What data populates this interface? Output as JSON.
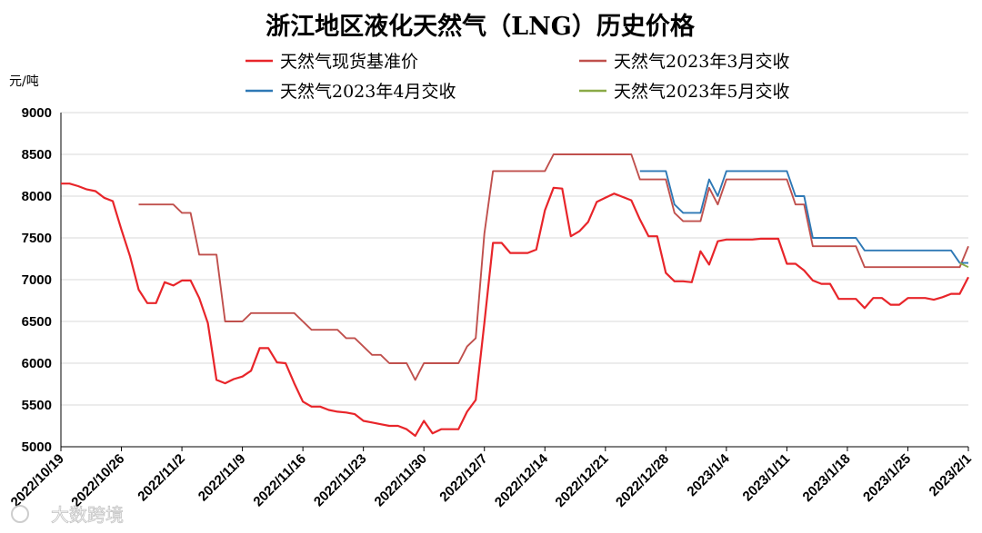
{
  "chart_data": {
    "type": "line",
    "title": "浙江地区液化天然气（LNG）历史价格",
    "ylabel": "元/吨",
    "ylim": [
      5000,
      9000
    ],
    "yticks": [
      5000,
      5500,
      6000,
      6500,
      7000,
      7500,
      8000,
      8500,
      9000
    ],
    "x_start": "2022/10/19",
    "x_end": "2023/2/1",
    "xtick_labels": [
      "2022/10/19",
      "2022/10/26",
      "2022/11/2",
      "2022/11/9",
      "2022/11/16",
      "2022/11/23",
      "2022/11/30",
      "2022/12/7",
      "2022/12/14",
      "2022/12/21",
      "2022/12/28",
      "2023/1/4",
      "2023/1/11",
      "2023/1/18",
      "2023/1/25",
      "2023/2/1"
    ],
    "grid": "horizontal",
    "legend_position": "top",
    "series": [
      {
        "name": "天然气现货基准价",
        "color": "#e8252a",
        "points": [
          [
            "2022/10/19",
            8150
          ],
          [
            "2022/10/20",
            8150
          ],
          [
            "2022/10/21",
            8120
          ],
          [
            "2022/10/22",
            8080
          ],
          [
            "2022/10/23",
            8060
          ],
          [
            "2022/10/24",
            7980
          ],
          [
            "2022/10/25",
            7940
          ],
          [
            "2022/10/26",
            7600
          ],
          [
            "2022/10/27",
            7280
          ],
          [
            "2022/10/28",
            6880
          ],
          [
            "2022/10/29",
            6720
          ],
          [
            "2022/10/30",
            6720
          ],
          [
            "2022/10/31",
            6970
          ],
          [
            "2022/11/1",
            6930
          ],
          [
            "2022/11/2",
            6990
          ],
          [
            "2022/11/3",
            6990
          ],
          [
            "2022/11/4",
            6780
          ],
          [
            "2022/11/5",
            6480
          ],
          [
            "2022/11/6",
            5800
          ],
          [
            "2022/11/7",
            5760
          ],
          [
            "2022/11/8",
            5810
          ],
          [
            "2022/11/9",
            5840
          ],
          [
            "2022/11/10",
            5910
          ],
          [
            "2022/11/11",
            6180
          ],
          [
            "2022/11/12",
            6180
          ],
          [
            "2022/11/13",
            6010
          ],
          [
            "2022/11/14",
            6000
          ],
          [
            "2022/11/15",
            5760
          ],
          [
            "2022/11/16",
            5540
          ],
          [
            "2022/11/17",
            5480
          ],
          [
            "2022/11/18",
            5480
          ],
          [
            "2022/11/19",
            5440
          ],
          [
            "2022/11/20",
            5420
          ],
          [
            "2022/11/21",
            5410
          ],
          [
            "2022/11/22",
            5390
          ],
          [
            "2022/11/23",
            5310
          ],
          [
            "2022/11/24",
            5290
          ],
          [
            "2022/11/25",
            5270
          ],
          [
            "2022/11/26",
            5250
          ],
          [
            "2022/11/27",
            5250
          ],
          [
            "2022/11/28",
            5210
          ],
          [
            "2022/11/29",
            5130
          ],
          [
            "2022/11/30",
            5310
          ],
          [
            "2022/12/1",
            5160
          ],
          [
            "2022/12/2",
            5210
          ],
          [
            "2022/12/3",
            5210
          ],
          [
            "2022/12/4",
            5210
          ],
          [
            "2022/12/5",
            5420
          ],
          [
            "2022/12/6",
            5560
          ],
          [
            "2022/12/7",
            6480
          ],
          [
            "2022/12/8",
            7440
          ],
          [
            "2022/12/9",
            7440
          ],
          [
            "2022/12/10",
            7320
          ],
          [
            "2022/12/11",
            7320
          ],
          [
            "2022/12/12",
            7320
          ],
          [
            "2022/12/13",
            7360
          ],
          [
            "2022/12/14",
            7830
          ],
          [
            "2022/12/15",
            8100
          ],
          [
            "2022/12/16",
            8090
          ],
          [
            "2022/12/17",
            7520
          ],
          [
            "2022/12/18",
            7580
          ],
          [
            "2022/12/19",
            7690
          ],
          [
            "2022/12/20",
            7930
          ],
          [
            "2022/12/21",
            7980
          ],
          [
            "2022/12/22",
            8030
          ],
          [
            "2022/12/23",
            7990
          ],
          [
            "2022/12/24",
            7950
          ],
          [
            "2022/12/25",
            7720
          ],
          [
            "2022/12/26",
            7520
          ],
          [
            "2022/12/27",
            7520
          ],
          [
            "2022/12/28",
            7080
          ],
          [
            "2022/12/29",
            6980
          ],
          [
            "2022/12/30",
            6980
          ],
          [
            "2022/12/31",
            6970
          ],
          [
            "2023/1/1",
            7340
          ],
          [
            "2023/1/2",
            7180
          ],
          [
            "2023/1/3",
            7460
          ],
          [
            "2023/1/4",
            7480
          ],
          [
            "2023/1/5",
            7480
          ],
          [
            "2023/1/6",
            7480
          ],
          [
            "2023/1/7",
            7480
          ],
          [
            "2023/1/8",
            7490
          ],
          [
            "2023/1/9",
            7490
          ],
          [
            "2023/1/10",
            7490
          ],
          [
            "2023/1/11",
            7190
          ],
          [
            "2023/1/12",
            7190
          ],
          [
            "2023/1/13",
            7110
          ],
          [
            "2023/1/14",
            6990
          ],
          [
            "2023/1/15",
            6950
          ],
          [
            "2023/1/16",
            6950
          ],
          [
            "2023/1/17",
            6770
          ],
          [
            "2023/1/18",
            6770
          ],
          [
            "2023/1/19",
            6770
          ],
          [
            "2023/1/20",
            6660
          ],
          [
            "2023/1/21",
            6780
          ],
          [
            "2023/1/22",
            6780
          ],
          [
            "2023/1/23",
            6700
          ],
          [
            "2023/1/24",
            6700
          ],
          [
            "2023/1/25",
            6780
          ],
          [
            "2023/1/26",
            6780
          ],
          [
            "2023/1/27",
            6780
          ],
          [
            "2023/1/28",
            6760
          ],
          [
            "2023/1/29",
            6790
          ],
          [
            "2023/1/30",
            6830
          ],
          [
            "2023/1/31",
            6830
          ],
          [
            "2023/2/1",
            7030
          ]
        ]
      },
      {
        "name": "天然气2023年3月交收",
        "color": "#c0504d",
        "points": [
          [
            "2022/10/28",
            7900
          ],
          [
            "2022/11/1",
            7900
          ],
          [
            "2022/11/2",
            7800
          ],
          [
            "2022/11/3",
            7800
          ],
          [
            "2022/11/4",
            7300
          ],
          [
            "2022/11/6",
            7300
          ],
          [
            "2022/11/7",
            6500
          ],
          [
            "2022/11/9",
            6500
          ],
          [
            "2022/11/10",
            6600
          ],
          [
            "2022/11/14",
            6600
          ],
          [
            "2022/11/15",
            6600
          ],
          [
            "2022/11/17",
            6400
          ],
          [
            "2022/11/20",
            6400
          ],
          [
            "2022/11/21",
            6300
          ],
          [
            "2022/11/22",
            6300
          ],
          [
            "2022/11/24",
            6100
          ],
          [
            "2022/11/25",
            6100
          ],
          [
            "2022/11/26",
            6000
          ],
          [
            "2022/11/28",
            6000
          ],
          [
            "2022/11/29",
            5800
          ],
          [
            "2022/11/30",
            6000
          ],
          [
            "2022/12/4",
            6000
          ],
          [
            "2022/12/5",
            6200
          ],
          [
            "2022/12/6",
            6300
          ],
          [
            "2022/12/7",
            7550
          ],
          [
            "2022/12/8",
            8300
          ],
          [
            "2022/12/14",
            8300
          ],
          [
            "2022/12/15",
            8500
          ],
          [
            "2022/12/24",
            8500
          ],
          [
            "2022/12/25",
            8200
          ],
          [
            "2022/12/28",
            8200
          ],
          [
            "2022/12/29",
            7800
          ],
          [
            "2022/12/30",
            7700
          ],
          [
            "2023/1/1",
            7700
          ],
          [
            "2023/1/2",
            8100
          ],
          [
            "2023/1/3",
            7900
          ],
          [
            "2023/1/4",
            8200
          ],
          [
            "2023/1/11",
            8200
          ],
          [
            "2023/1/12",
            7900
          ],
          [
            "2023/1/13",
            7900
          ],
          [
            "2023/1/14",
            7400
          ],
          [
            "2023/1/19",
            7400
          ],
          [
            "2023/1/20",
            7150
          ],
          [
            "2023/1/31",
            7150
          ],
          [
            "2023/2/1",
            7400
          ]
        ]
      },
      {
        "name": "天然气2023年4月交收",
        "color": "#2e78b5",
        "points": [
          [
            "2022/12/25",
            8300
          ],
          [
            "2022/12/28",
            8300
          ],
          [
            "2022/12/29",
            7900
          ],
          [
            "2022/12/30",
            7800
          ],
          [
            "2023/1/1",
            7800
          ],
          [
            "2023/1/2",
            8200
          ],
          [
            "2023/1/3",
            8000
          ],
          [
            "2023/1/4",
            8300
          ],
          [
            "2023/1/11",
            8300
          ],
          [
            "2023/1/12",
            8000
          ],
          [
            "2023/1/13",
            8000
          ],
          [
            "2023/1/14",
            7500
          ],
          [
            "2023/1/19",
            7500
          ],
          [
            "2023/1/20",
            7350
          ],
          [
            "2023/1/30",
            7350
          ],
          [
            "2023/1/31",
            7200
          ],
          [
            "2023/2/1",
            7200
          ]
        ]
      },
      {
        "name": "天然气2023年5月交收",
        "color": "#8aaa47",
        "points": [
          [
            "2023/1/31",
            7200
          ],
          [
            "2023/2/1",
            7150
          ]
        ]
      }
    ]
  },
  "watermark": "大数跨境"
}
